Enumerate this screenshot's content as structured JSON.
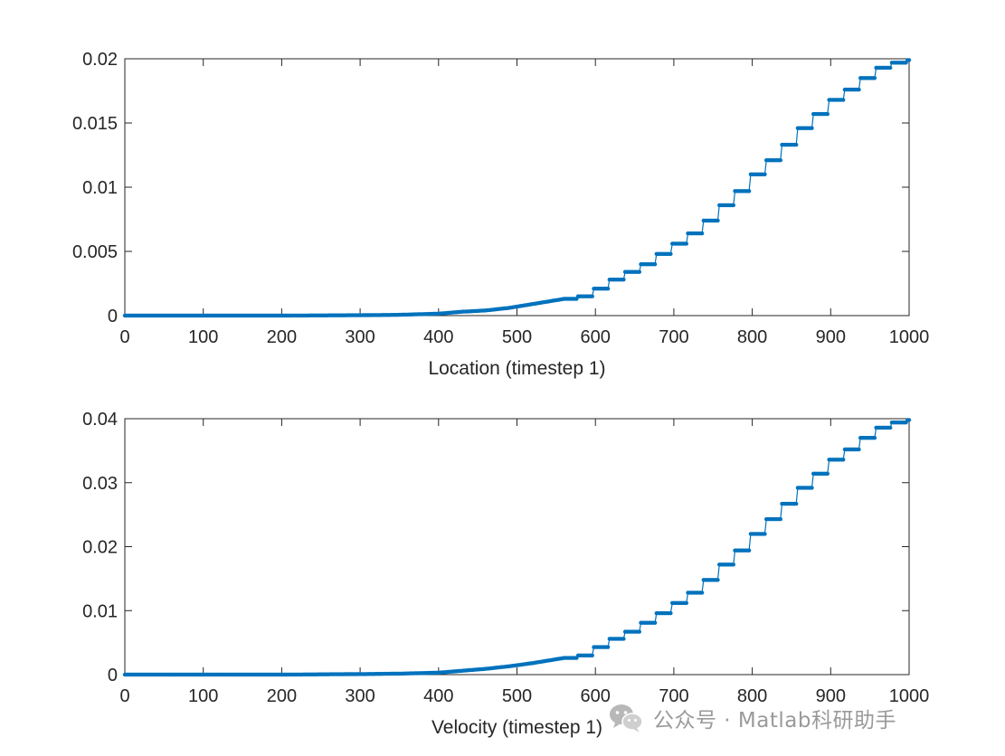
{
  "chart_data": [
    {
      "type": "line",
      "xlabel": "Location (timestep 1)",
      "ylabel": "",
      "title": "",
      "xlim": [
        0,
        1000
      ],
      "ylim": [
        0,
        0.02
      ],
      "xticks": [
        "0",
        "100",
        "200",
        "300",
        "400",
        "500",
        "600",
        "700",
        "800",
        "900",
        "1000"
      ],
      "yticks": [
        "0",
        "0.005",
        "0.01",
        "0.015",
        "0.02"
      ],
      "grid": false,
      "legend": "none",
      "line_color": "#0072bd",
      "marker": "point",
      "series": [
        {
          "x": [
            0,
            100,
            200,
            300,
            350,
            400,
            430,
            460,
            490,
            520,
            550,
            580,
            600,
            620,
            640,
            660,
            680,
            700,
            720,
            740,
            760,
            780,
            800,
            820,
            840,
            860,
            880,
            900,
            920,
            940,
            960,
            980,
            1000
          ],
          "values": [
            0,
            0,
            0,
            3e-05,
            6e-05,
            0.00015,
            0.0003,
            0.0004,
            0.0006,
            0.0009,
            0.0012,
            0.0015,
            0.0021,
            0.0028,
            0.0034,
            0.004,
            0.0048,
            0.0056,
            0.0064,
            0.0074,
            0.0086,
            0.0097,
            0.011,
            0.0121,
            0.0133,
            0.0146,
            0.0157,
            0.0168,
            0.0176,
            0.0185,
            0.0193,
            0.0197,
            0.0199
          ]
        }
      ]
    },
    {
      "type": "line",
      "xlabel": "Velocity (timestep 1)",
      "ylabel": "",
      "title": "",
      "xlim": [
        0,
        1000
      ],
      "ylim": [
        0,
        0.04
      ],
      "xticks": [
        "0",
        "100",
        "200",
        "300",
        "400",
        "500",
        "600",
        "700",
        "800",
        "900",
        "1000"
      ],
      "yticks": [
        "0",
        "0.01",
        "0.02",
        "0.03",
        "0.04"
      ],
      "grid": false,
      "legend": "none",
      "line_color": "#0072bd",
      "marker": "point",
      "series": [
        {
          "x": [
            0,
            100,
            200,
            300,
            350,
            400,
            430,
            460,
            490,
            520,
            550,
            580,
            600,
            620,
            640,
            660,
            680,
            700,
            720,
            740,
            760,
            780,
            800,
            820,
            840,
            860,
            880,
            900,
            920,
            940,
            960,
            980,
            1000
          ],
          "values": [
            0,
            0,
            0,
            8e-05,
            0.00015,
            0.0003,
            0.0006,
            0.0009,
            0.0013,
            0.0018,
            0.0024,
            0.003,
            0.0043,
            0.0056,
            0.0067,
            0.0081,
            0.0096,
            0.0112,
            0.0128,
            0.0148,
            0.0172,
            0.0194,
            0.022,
            0.0243,
            0.0267,
            0.0292,
            0.0314,
            0.0336,
            0.0352,
            0.037,
            0.0386,
            0.0394,
            0.0398
          ]
        }
      ]
    }
  ],
  "watermark": {
    "text": "公众号 · Matlab科研助手",
    "icon": "wechat-icon"
  }
}
